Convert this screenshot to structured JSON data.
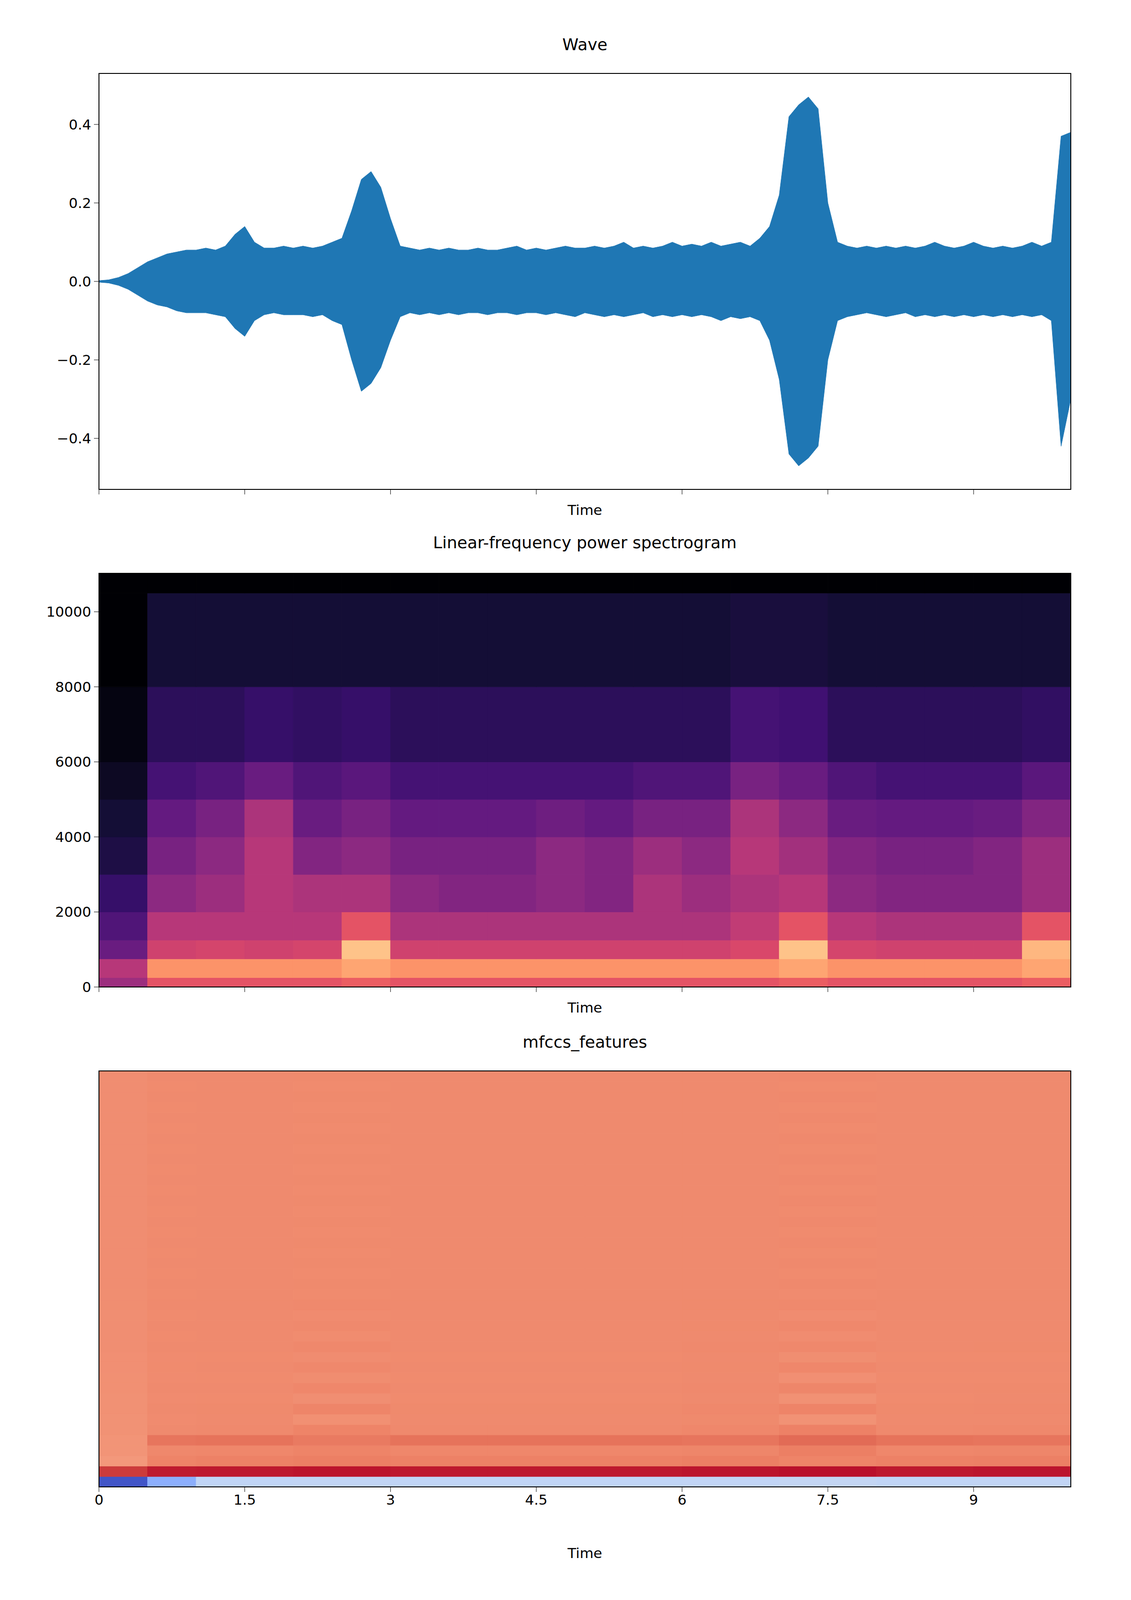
{
  "chart_data": [
    {
      "type": "area",
      "title": "Wave",
      "x_label": "Time",
      "color": "#1f77b4",
      "x": [
        0,
        0.1,
        0.2,
        0.3,
        0.4,
        0.5,
        0.6,
        0.7,
        0.8,
        0.9,
        1,
        1.1,
        1.2,
        1.3,
        1.4,
        1.5,
        1.6,
        1.7,
        1.8,
        1.9,
        2,
        2.1,
        2.2,
        2.3,
        2.4,
        2.5,
        2.6,
        2.7,
        2.8,
        2.9,
        3,
        3.1,
        3.2,
        3.3,
        3.4,
        3.5,
        3.6,
        3.7,
        3.8,
        3.9,
        4,
        4.1,
        4.2,
        4.3,
        4.4,
        4.5,
        4.6,
        4.7,
        4.8,
        4.9,
        5,
        5.1,
        5.2,
        5.3,
        5.4,
        5.5,
        5.6,
        5.7,
        5.8,
        5.9,
        6,
        6.1,
        6.2,
        6.3,
        6.4,
        6.5,
        6.6,
        6.7,
        6.8,
        6.9,
        7,
        7.1,
        7.2,
        7.3,
        7.4,
        7.5,
        7.6,
        7.7,
        7.8,
        7.9,
        8,
        8.1,
        8.2,
        8.3,
        8.4,
        8.5,
        8.6,
        8.7,
        8.8,
        8.9,
        9,
        9.1,
        9.2,
        9.3,
        9.4,
        9.5,
        9.6,
        9.7,
        9.8,
        9.9,
        10
      ],
      "upper": [
        0.002,
        0.004,
        0.01,
        0.02,
        0.035,
        0.05,
        0.06,
        0.07,
        0.075,
        0.08,
        0.08,
        0.085,
        0.08,
        0.09,
        0.12,
        0.14,
        0.1,
        0.085,
        0.085,
        0.09,
        0.085,
        0.09,
        0.085,
        0.09,
        0.1,
        0.11,
        0.18,
        0.26,
        0.28,
        0.24,
        0.16,
        0.09,
        0.085,
        0.08,
        0.085,
        0.08,
        0.085,
        0.08,
        0.08,
        0.085,
        0.08,
        0.08,
        0.085,
        0.09,
        0.08,
        0.085,
        0.08,
        0.085,
        0.09,
        0.085,
        0.085,
        0.09,
        0.085,
        0.09,
        0.1,
        0.085,
        0.09,
        0.085,
        0.09,
        0.1,
        0.09,
        0.095,
        0.09,
        0.1,
        0.09,
        0.095,
        0.1,
        0.09,
        0.11,
        0.14,
        0.22,
        0.42,
        0.45,
        0.47,
        0.44,
        0.2,
        0.1,
        0.09,
        0.085,
        0.09,
        0.085,
        0.09,
        0.085,
        0.09,
        0.085,
        0.09,
        0.1,
        0.09,
        0.085,
        0.09,
        0.1,
        0.09,
        0.085,
        0.09,
        0.085,
        0.09,
        0.1,
        0.09,
        0.1,
        0.37,
        0.38
      ],
      "lower": [
        -0.002,
        -0.004,
        -0.01,
        -0.02,
        -0.035,
        -0.05,
        -0.06,
        -0.065,
        -0.075,
        -0.08,
        -0.08,
        -0.08,
        -0.085,
        -0.09,
        -0.12,
        -0.14,
        -0.1,
        -0.085,
        -0.08,
        -0.085,
        -0.085,
        -0.085,
        -0.09,
        -0.085,
        -0.1,
        -0.11,
        -0.2,
        -0.28,
        -0.26,
        -0.22,
        -0.15,
        -0.09,
        -0.08,
        -0.085,
        -0.08,
        -0.085,
        -0.08,
        -0.085,
        -0.08,
        -0.08,
        -0.085,
        -0.08,
        -0.08,
        -0.085,
        -0.08,
        -0.08,
        -0.085,
        -0.08,
        -0.085,
        -0.09,
        -0.08,
        -0.085,
        -0.09,
        -0.085,
        -0.09,
        -0.085,
        -0.08,
        -0.09,
        -0.085,
        -0.09,
        -0.085,
        -0.09,
        -0.085,
        -0.09,
        -0.1,
        -0.09,
        -0.095,
        -0.09,
        -0.1,
        -0.15,
        -0.25,
        -0.44,
        -0.47,
        -0.45,
        -0.42,
        -0.2,
        -0.1,
        -0.09,
        -0.085,
        -0.08,
        -0.085,
        -0.09,
        -0.085,
        -0.08,
        -0.09,
        -0.085,
        -0.09,
        -0.085,
        -0.09,
        -0.085,
        -0.09,
        -0.085,
        -0.09,
        -0.085,
        -0.09,
        -0.085,
        -0.09,
        -0.085,
        -0.1,
        -0.42,
        -0.3
      ],
      "xlim": [
        0,
        10
      ],
      "ylim": [
        -0.53,
        0.53
      ],
      "xticks": [
        0,
        1.5,
        3,
        4.5,
        6,
        7.5,
        9
      ],
      "yticks": [
        {
          "value": -0.4,
          "label": "−0.4"
        },
        {
          "value": -0.2,
          "label": "−0.2"
        },
        {
          "value": 0,
          "label": "0.0"
        },
        0.2,
        0.4
      ],
      "tick_labels": "y"
    },
    {
      "type": "heatmap",
      "title": "Linear-frequency power spectrogram",
      "x_label": "Time",
      "color": "magma",
      "x_edges": [
        0,
        0.5,
        1,
        1.5,
        2,
        2.5,
        3,
        3.5,
        4,
        4.5,
        5,
        5.5,
        6,
        6.5,
        7,
        7.5,
        8,
        8.5,
        9,
        9.5,
        10
      ],
      "y_edges": [
        0,
        250,
        750,
        1250,
        2000,
        3000,
        4000,
        5000,
        6000,
        8000,
        10500,
        11025
      ],
      "cells": [
        [
          -45,
          -30,
          -30,
          -30,
          -30,
          -28,
          -30,
          -30,
          -30,
          -30,
          -30,
          -30,
          -30,
          -30,
          -28,
          -30,
          -30,
          -30,
          -30,
          -28
        ],
        [
          -40,
          -18,
          -18,
          -18,
          -18,
          -15,
          -18,
          -18,
          -18,
          -18,
          -18,
          -18,
          -18,
          -18,
          -15,
          -18,
          -18,
          -18,
          -18,
          -15
        ],
        [
          -55,
          -35,
          -34,
          -35,
          -34,
          -10,
          -35,
          -35,
          -35,
          -35,
          -35,
          -35,
          -35,
          -33,
          -10,
          -34,
          -35,
          -35,
          -35,
          -12
        ],
        [
          -60,
          -40,
          -40,
          -40,
          -40,
          -30,
          -42,
          -42,
          -42,
          -42,
          -42,
          -42,
          -42,
          -38,
          -30,
          -40,
          -42,
          -42,
          -42,
          -30
        ],
        [
          -65,
          -48,
          -45,
          -40,
          -42,
          -42,
          -48,
          -50,
          -50,
          -48,
          -50,
          -42,
          -45,
          -42,
          -40,
          -48,
          -50,
          -50,
          -50,
          -45
        ],
        [
          -70,
          -52,
          -48,
          -40,
          -50,
          -48,
          -52,
          -52,
          -52,
          -48,
          -50,
          -45,
          -48,
          -40,
          -44,
          -50,
          -52,
          -52,
          -50,
          -45
        ],
        [
          -72,
          -56,
          -52,
          -42,
          -55,
          -52,
          -56,
          -56,
          -56,
          -54,
          -56,
          -52,
          -52,
          -42,
          -48,
          -55,
          -56,
          -56,
          -55,
          -50
        ],
        [
          -75,
          -62,
          -60,
          -55,
          -60,
          -58,
          -62,
          -62,
          -62,
          -62,
          -62,
          -60,
          -60,
          -52,
          -55,
          -60,
          -62,
          -62,
          -62,
          -58
        ],
        [
          -78,
          -67,
          -67,
          -65,
          -66,
          -65,
          -67,
          -67,
          -67,
          -67,
          -67,
          -67,
          -67,
          -62,
          -63,
          -67,
          -67,
          -67,
          -67,
          -66
        ],
        [
          -80,
          -72,
          -72,
          -72,
          -72,
          -72,
          -72,
          -72,
          -72,
          -72,
          -72,
          -72,
          -72,
          -71,
          -71,
          -72,
          -72,
          -72,
          -72,
          -72
        ],
        [
          -80,
          -80,
          -80,
          -80,
          -80,
          -80,
          -80,
          -80,
          -80,
          -80,
          -80,
          -80,
          -80,
          -80,
          -80,
          -80,
          -80,
          -80,
          -80,
          -80
        ]
      ],
      "color_range": [
        -80,
        0
      ],
      "xlim": [
        0,
        10
      ],
      "ylim": [
        0,
        11025
      ],
      "xticks": [
        0,
        1.5,
        3,
        4.5,
        6,
        7.5,
        9
      ],
      "yticks": [
        0,
        2000,
        4000,
        6000,
        8000,
        10000
      ],
      "tick_labels": "y"
    },
    {
      "type": "heatmap",
      "title": "mfccs_features",
      "x_label": "Time",
      "color": "coolwarm",
      "x_edges": [
        0,
        0.5,
        1,
        2,
        3,
        4,
        5,
        6,
        7,
        8,
        9,
        10
      ],
      "y_edges": [
        0,
        1,
        2,
        3,
        4,
        5,
        6,
        7,
        8,
        9,
        10,
        11,
        12,
        13,
        14,
        15,
        16,
        17,
        18,
        19,
        20,
        21,
        22,
        23,
        24,
        25,
        26,
        27,
        28,
        29,
        30,
        31,
        32,
        33,
        34,
        35,
        36,
        37,
        38,
        39,
        40
      ],
      "cells": [
        [
          -480,
          -250,
          -100,
          -95,
          -100,
          -100,
          -100,
          -98,
          -90,
          -100,
          -95
        ],
        [
          430,
          470,
          475,
          480,
          475,
          475,
          475,
          478,
          485,
          475,
          478
        ],
        [
          250,
          300,
          305,
          310,
          305,
          305,
          305,
          310,
          300,
          305,
          308
        ],
        [
          260,
          290,
          292,
          300,
          292,
          292,
          292,
          296,
          310,
          292,
          295
        ],
        [
          260,
          330,
          335,
          320,
          335,
          335,
          335,
          330,
          350,
          335,
          330
        ],
        [
          265,
          285,
          288,
          300,
          288,
          288,
          288,
          292,
          305,
          288,
          290
        ],
        [
          265,
          282,
          284,
          270,
          284,
          284,
          284,
          286,
          265,
          284,
          285
        ],
        [
          268,
          285,
          286,
          298,
          286,
          286,
          286,
          290,
          300,
          286,
          288
        ],
        [
          268,
          282,
          283,
          275,
          283,
          283,
          283,
          285,
          268,
          283,
          284
        ],
        [
          270,
          284,
          285,
          292,
          285,
          285,
          285,
          288,
          295,
          285,
          286
        ],
        [
          270,
          282,
          283,
          278,
          283,
          283,
          283,
          284,
          272,
          283,
          283
        ],
        [
          272,
          283,
          284,
          290,
          284,
          284,
          284,
          286,
          292,
          284,
          285
        ],
        [
          272,
          282,
          283,
          280,
          283,
          283,
          283,
          284,
          276,
          283,
          283
        ],
        [
          274,
          284,
          285,
          289,
          285,
          285,
          285,
          287,
          290,
          285,
          286
        ],
        [
          274,
          283,
          284,
          281,
          284,
          284,
          284,
          285,
          279,
          284,
          284
        ],
        [
          275,
          284,
          285,
          288,
          285,
          285,
          285,
          286,
          289,
          285,
          285
        ],
        [
          275,
          283,
          284,
          282,
          284,
          284,
          284,
          285,
          280,
          284,
          284
        ],
        [
          276,
          284,
          285,
          287,
          285,
          285,
          285,
          286,
          288,
          285,
          285
        ],
        [
          276,
          283,
          284,
          283,
          284,
          284,
          284,
          285,
          282,
          284,
          284
        ],
        [
          277,
          284,
          284,
          286,
          284,
          284,
          284,
          285,
          287,
          284,
          285
        ],
        [
          277,
          283,
          284,
          283,
          284,
          284,
          284,
          284,
          283,
          284,
          284
        ],
        [
          277,
          284,
          284,
          286,
          284,
          284,
          284,
          285,
          287,
          284,
          285
        ],
        [
          277,
          283,
          284,
          283,
          284,
          284,
          284,
          284,
          283,
          284,
          284
        ],
        [
          277,
          284,
          284,
          286,
          284,
          284,
          284,
          285,
          287,
          284,
          285
        ],
        [
          277,
          283,
          284,
          283,
          284,
          284,
          284,
          284,
          283,
          284,
          284
        ],
        [
          277,
          284,
          284,
          286,
          284,
          284,
          284,
          285,
          287,
          284,
          285
        ],
        [
          277,
          283,
          284,
          283,
          284,
          284,
          284,
          284,
          283,
          284,
          284
        ],
        [
          277,
          284,
          284,
          286,
          284,
          284,
          284,
          285,
          287,
          284,
          285
        ],
        [
          277,
          283,
          284,
          283,
          284,
          284,
          284,
          284,
          283,
          284,
          284
        ],
        [
          277,
          284,
          284,
          286,
          284,
          284,
          284,
          285,
          287,
          284,
          285
        ],
        [
          277,
          283,
          284,
          283,
          284,
          284,
          284,
          284,
          283,
          284,
          284
        ],
        [
          277,
          284,
          284,
          286,
          284,
          284,
          284,
          285,
          287,
          284,
          285
        ],
        [
          277,
          283,
          284,
          283,
          284,
          284,
          284,
          284,
          283,
          284,
          284
        ],
        [
          277,
          284,
          284,
          286,
          284,
          284,
          284,
          285,
          287,
          284,
          285
        ],
        [
          277,
          283,
          284,
          283,
          284,
          284,
          284,
          284,
          283,
          284,
          284
        ],
        [
          277,
          284,
          284,
          286,
          284,
          284,
          284,
          285,
          287,
          284,
          285
        ],
        [
          277,
          283,
          284,
          283,
          284,
          284,
          284,
          284,
          283,
          284,
          284
        ],
        [
          277,
          284,
          284,
          286,
          284,
          284,
          284,
          285,
          287,
          284,
          285
        ],
        [
          277,
          283,
          284,
          283,
          284,
          284,
          284,
          284,
          283,
          284,
          284
        ],
        [
          277,
          284,
          284,
          286,
          284,
          284,
          284,
          285,
          287,
          284,
          285
        ]
      ],
      "color_range": [
        -500,
        500
      ],
      "xlim": [
        0,
        10
      ],
      "ylim": [
        0,
        40
      ],
      "xticks": [
        0,
        1.5,
        3,
        4.5,
        6,
        7.5,
        9
      ],
      "tick_labels": "x"
    }
  ]
}
